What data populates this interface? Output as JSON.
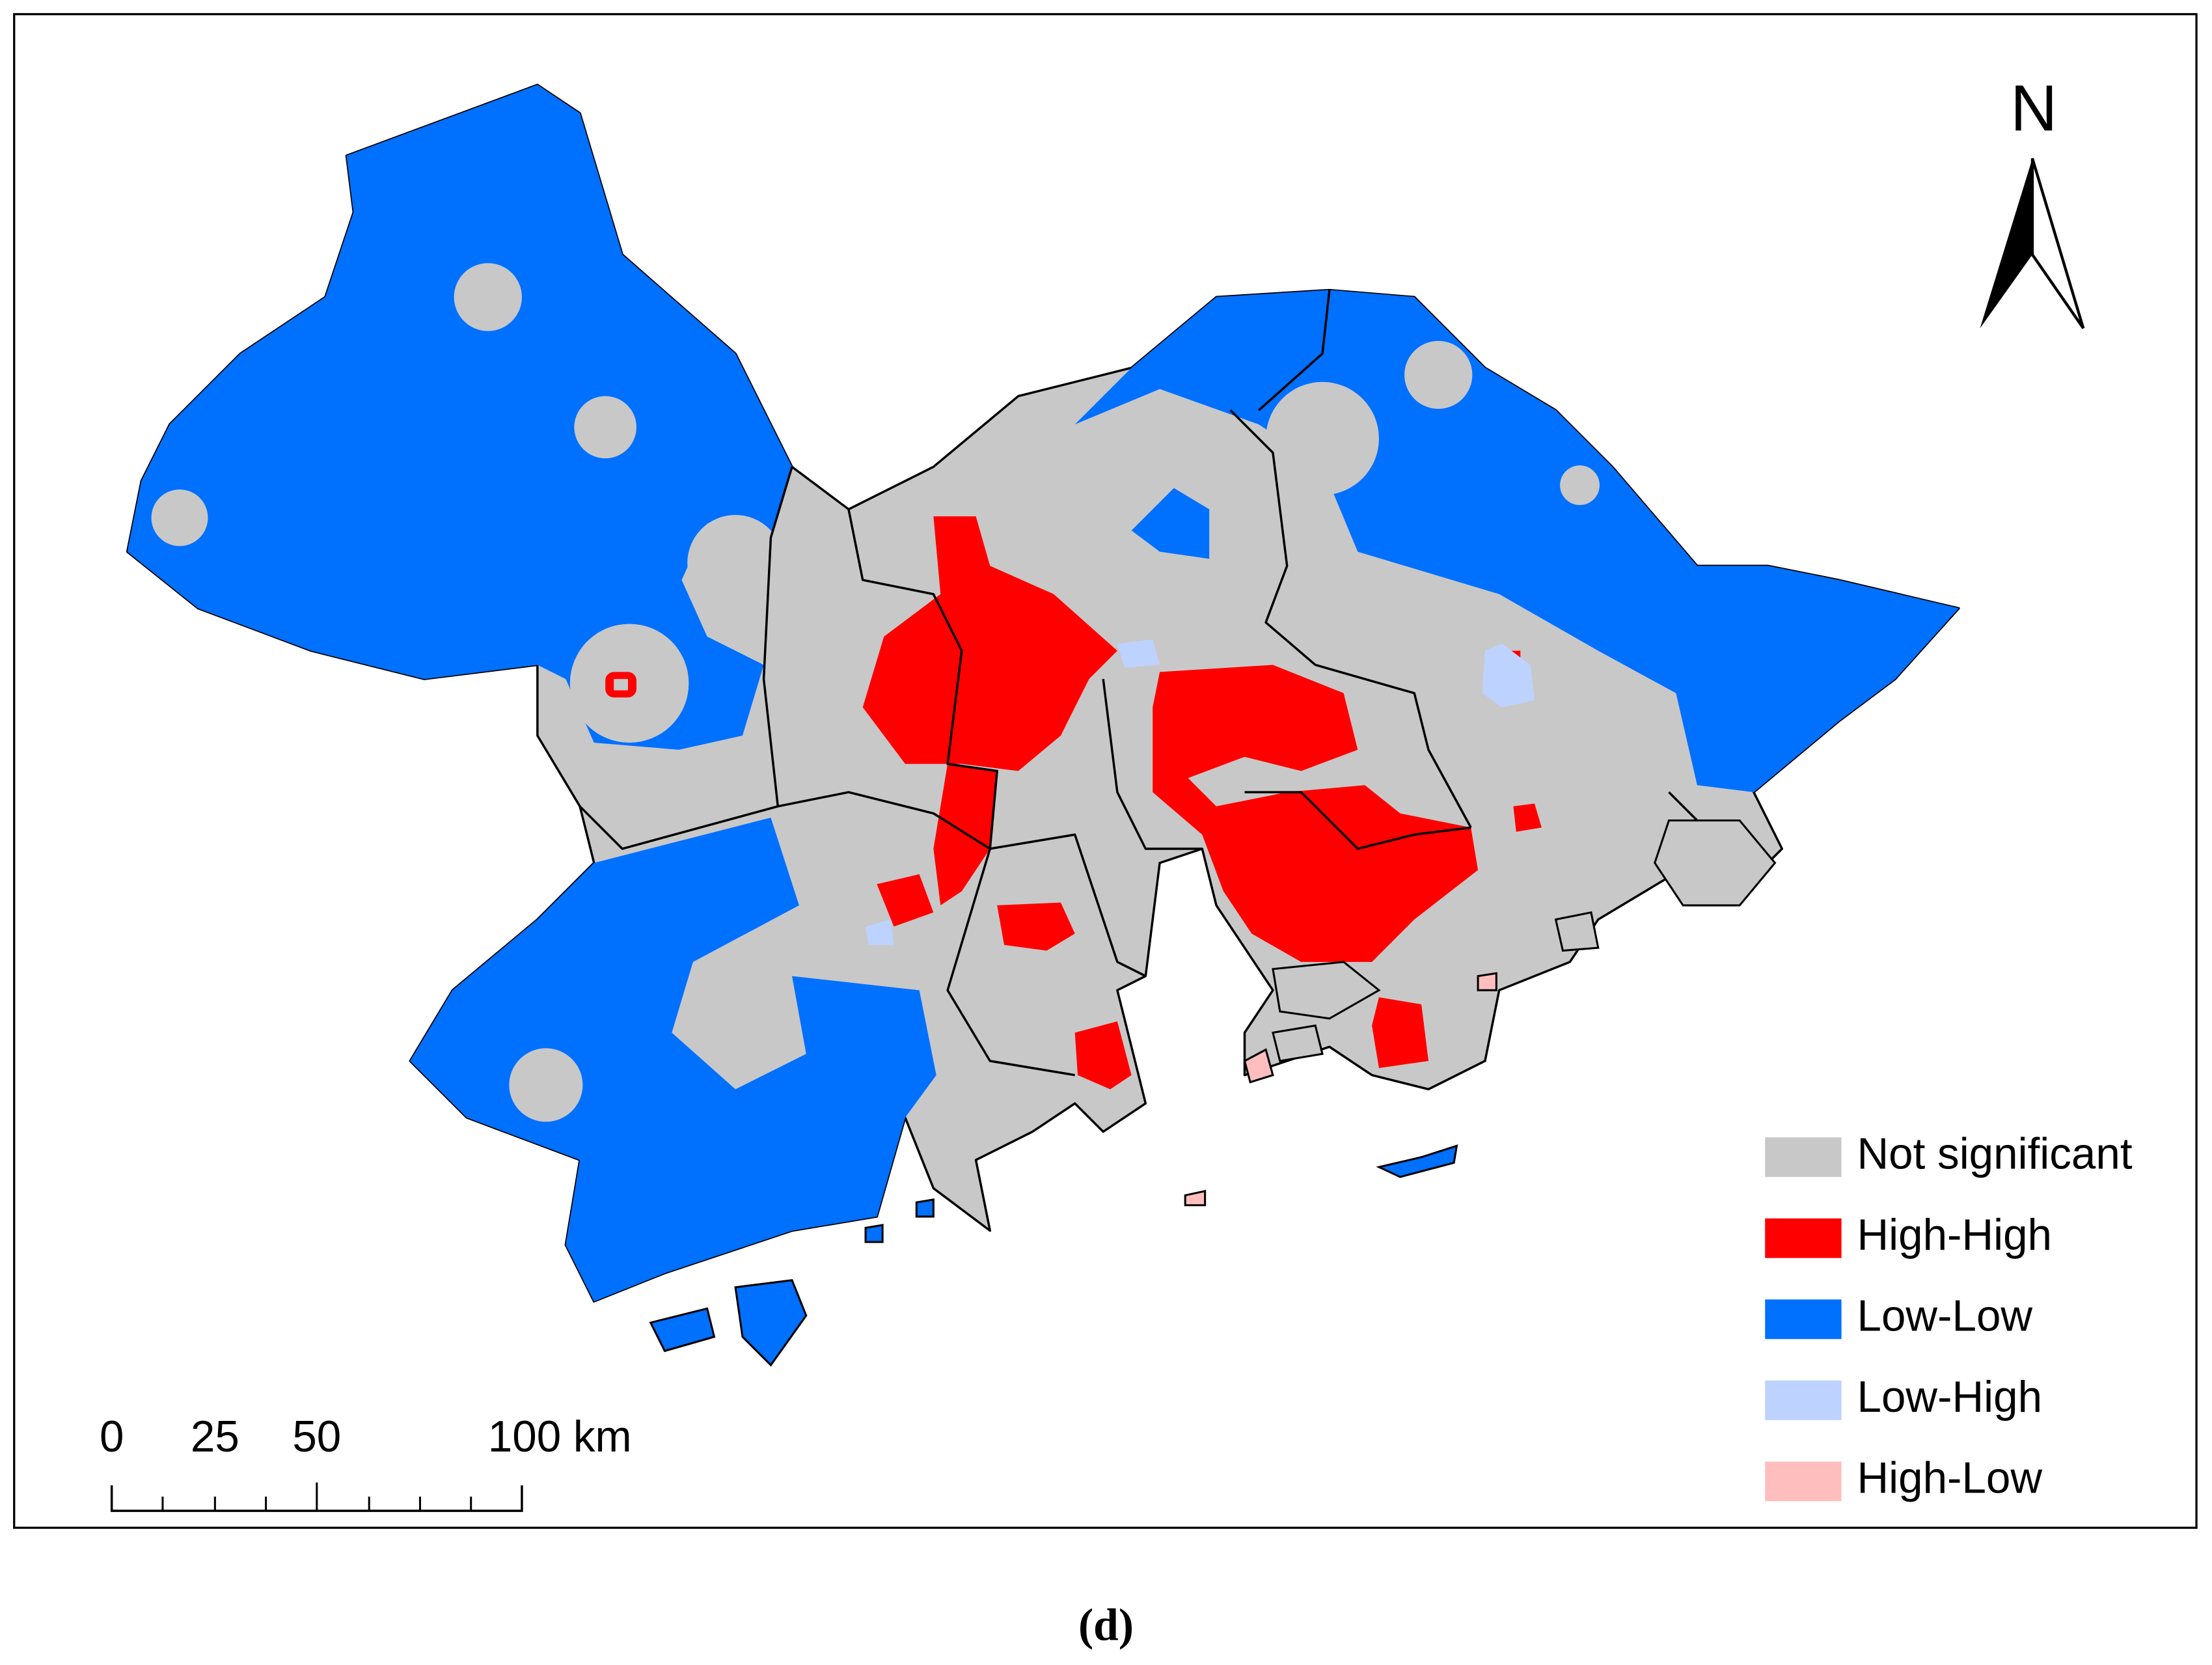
{
  "north": "N",
  "legend": [
    {
      "label": "Not significant",
      "color": "#c8c8c8"
    },
    {
      "label": "High-High",
      "color": "#ff0000"
    },
    {
      "label": "Low-Low",
      "color": "#0070ff"
    },
    {
      "label": "Low-High",
      "color": "#bed2ff"
    },
    {
      "label": "High-Low",
      "color": "#ffbebe"
    }
  ],
  "scale_bar": {
    "labels": [
      "0",
      "25",
      "50",
      "100 km"
    ]
  },
  "caption": "(d)"
}
